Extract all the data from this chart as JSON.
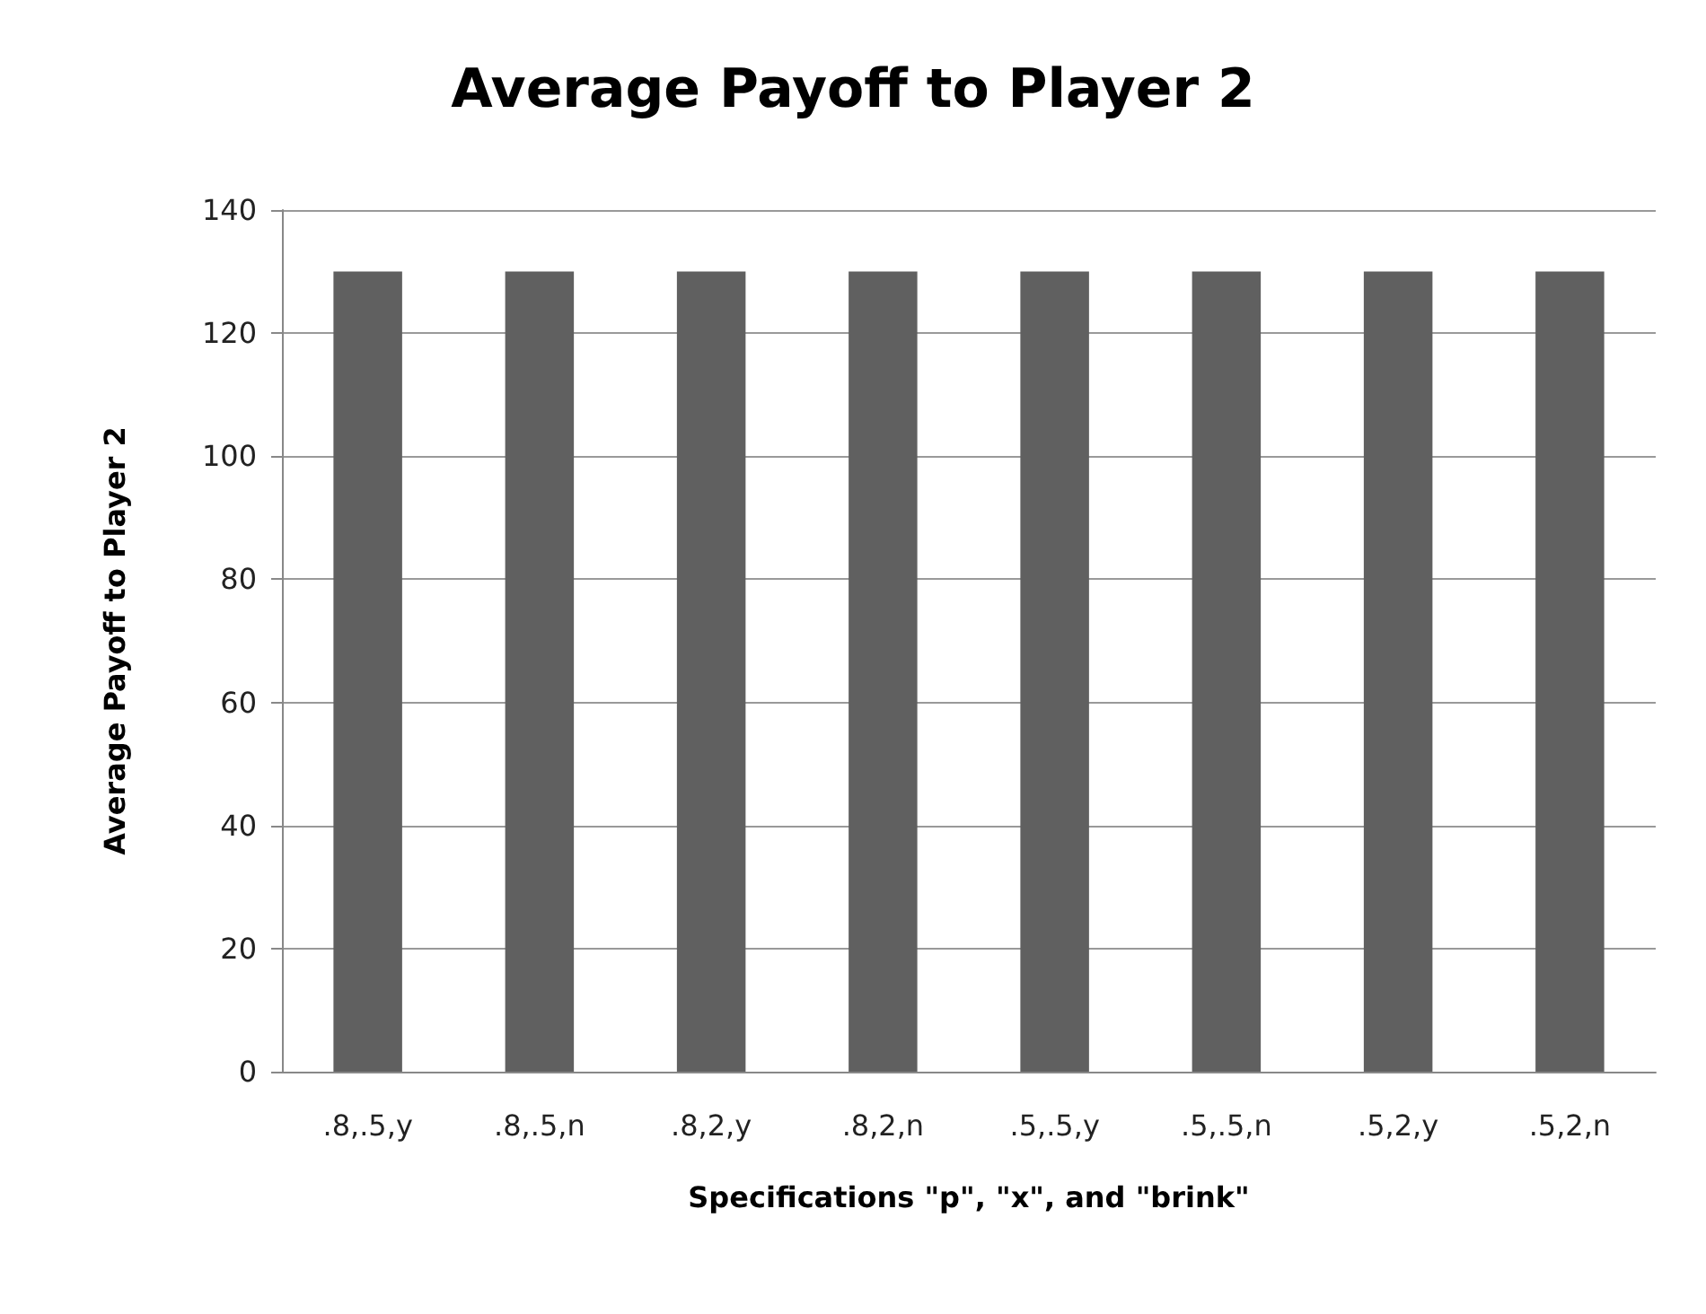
{
  "chart_data": {
    "type": "bar",
    "title": "Average Payoff to Player 2",
    "xlabel": "Specifications \"p\", \"x\", and \"brink\"",
    "ylabel": "Average Payoff to Player 2",
    "categories": [
      ".8,.5,y",
      ".8,.5,n",
      ".8,2,y",
      ".8,2,n",
      ".5,.5,y",
      ".5,.5,n",
      ".5,2,y",
      ".5,2,n"
    ],
    "values": [
      130,
      130,
      130,
      130,
      130,
      130,
      130,
      130
    ],
    "color": "#606060",
    "ylim": [
      0,
      140
    ],
    "yticks": [
      0,
      20,
      40,
      60,
      80,
      100,
      120,
      140
    ],
    "grid": "y"
  }
}
